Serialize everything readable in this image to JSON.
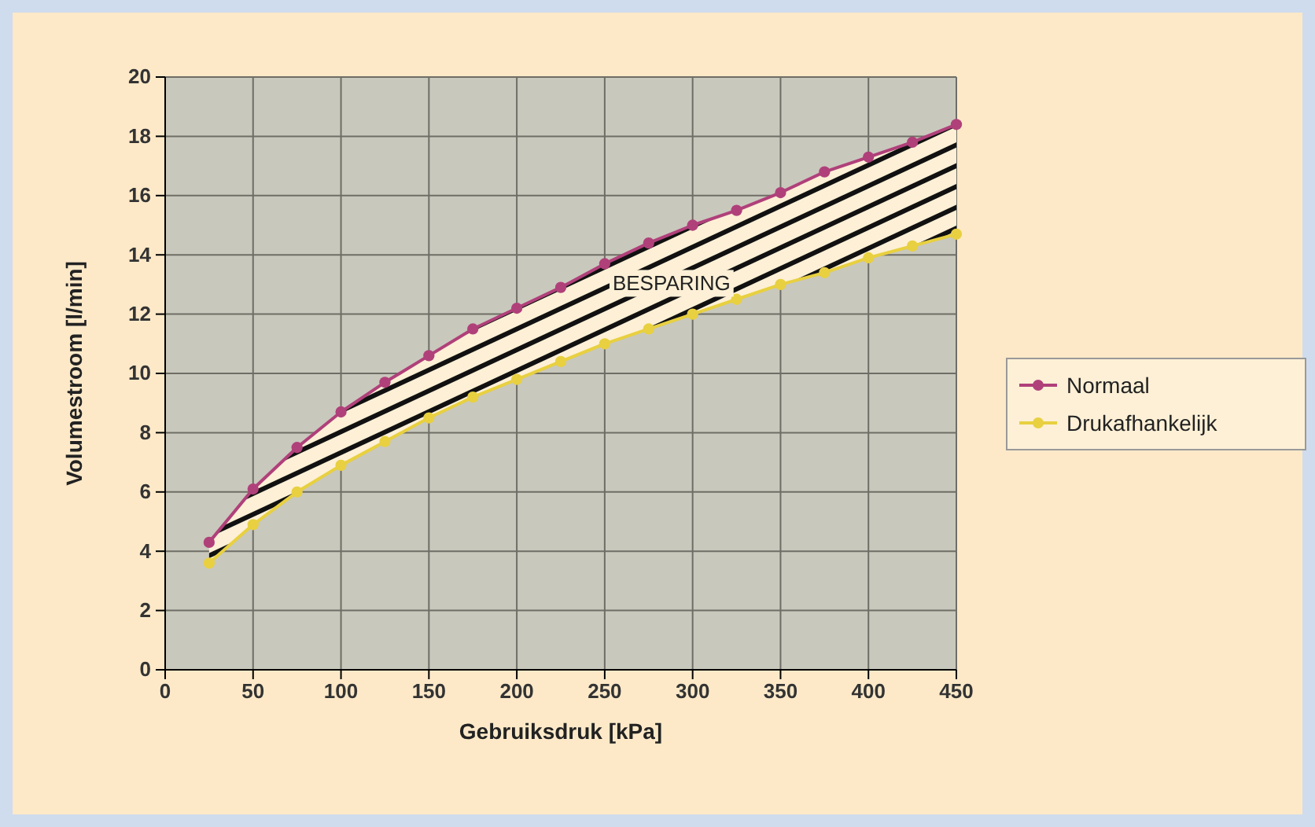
{
  "chart_data": {
    "type": "line",
    "xlabel": "Gebruiksdruk [kPa]",
    "ylabel": "Volumestroom [l/min]",
    "x": [
      25,
      50,
      75,
      100,
      125,
      150,
      175,
      200,
      225,
      250,
      275,
      300,
      325,
      350,
      375,
      400,
      425,
      450
    ],
    "series": [
      {
        "name": "Normaal",
        "color": "#b0407a",
        "values": [
          4.3,
          6.1,
          7.5,
          8.7,
          9.7,
          10.6,
          11.5,
          12.2,
          12.9,
          13.7,
          14.4,
          15.0,
          15.5,
          16.1,
          16.8,
          17.3,
          17.8,
          18.4
        ],
        "upper": [
          4.3,
          6.1,
          7.5,
          8.7,
          9.7,
          10.6,
          11.5,
          12.2,
          12.9,
          13.7,
          14.4,
          15.0,
          15.5,
          16.1,
          16.8,
          17.3,
          17.8,
          18.4
        ],
        "lower": [
          3.6,
          4.9,
          6.0,
          6.9,
          7.7,
          8.5,
          9.2,
          9.8,
          10.4,
          11.0,
          11.5,
          12.0,
          12.5,
          13.0,
          13.4,
          13.9,
          14.3,
          14.7
        ]
      },
      {
        "name": "Drukafhankelijk",
        "color": "#e8d040",
        "values": [
          3.6,
          4.9,
          6.0,
          6.9,
          7.7,
          8.5,
          9.2,
          9.8,
          10.4,
          11.0,
          11.5,
          12.0,
          12.5,
          13.0,
          13.4,
          13.9,
          14.3,
          14.7
        ]
      }
    ],
    "xlim": [
      0,
      450
    ],
    "xticks": [
      0,
      50,
      100,
      150,
      200,
      250,
      300,
      350,
      400,
      450
    ],
    "ylim": [
      0,
      20
    ],
    "yticks": [
      0,
      2,
      4,
      6,
      8,
      10,
      12,
      14,
      16,
      18,
      20
    ],
    "annotations": [
      "BESPARING"
    ],
    "grid": true,
    "legend": "right",
    "marker": "circle",
    "line_style": "solid"
  }
}
